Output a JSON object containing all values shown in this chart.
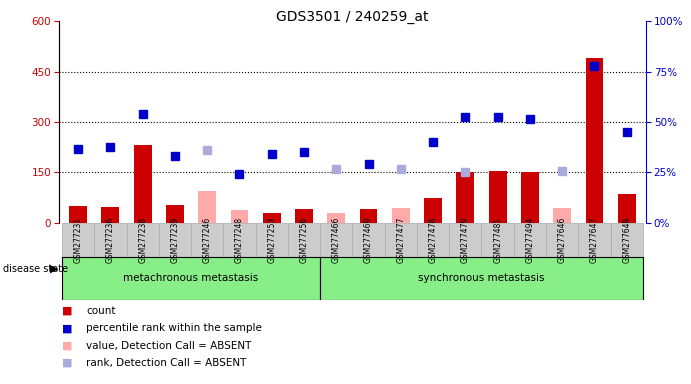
{
  "title": "GDS3501 / 240259_at",
  "samples": [
    "GSM277231",
    "GSM277236",
    "GSM277238",
    "GSM277239",
    "GSM277246",
    "GSM277248",
    "GSM277253",
    "GSM277256",
    "GSM277466",
    "GSM277469",
    "GSM277477",
    "GSM277478",
    "GSM277479",
    "GSM277481",
    "GSM277494",
    "GSM277646",
    "GSM277647",
    "GSM277648"
  ],
  "group1_label": "metachronous metastasis",
  "group2_label": "synchronous metastasis",
  "group1_count": 8,
  "group2_count": 10,
  "bar_values": [
    50,
    48,
    230,
    52,
    null,
    null,
    28,
    42,
    null,
    40,
    null,
    75,
    150,
    155,
    150,
    null,
    490,
    85
  ],
  "bar_absent": [
    null,
    null,
    null,
    null,
    95,
    38,
    null,
    null,
    28,
    null,
    45,
    null,
    null,
    null,
    null,
    45,
    null,
    null
  ],
  "scatter_dark": [
    220,
    225,
    325,
    200,
    null,
    145,
    205,
    210,
    null,
    175,
    null,
    240,
    315,
    315,
    310,
    null,
    465,
    270
  ],
  "scatter_light": [
    null,
    null,
    null,
    null,
    215,
    null,
    null,
    null,
    160,
    null,
    160,
    null,
    150,
    null,
    null,
    155,
    null,
    null
  ],
  "ylim_left": [
    0,
    600
  ],
  "ylim_right": [
    0,
    100
  ],
  "yticks_left": [
    0,
    150,
    300,
    450,
    600
  ],
  "yticks_right": [
    0,
    25,
    50,
    75,
    100
  ],
  "bar_color": "#cc0000",
  "bar_absent_color": "#ffaaaa",
  "scatter_dark_color": "#0000cc",
  "scatter_light_color": "#aaaadd",
  "group_bg_color": "#88ee88",
  "sample_box_color": "#cccccc",
  "plot_bg_color": "#ffffff",
  "grid_color": "#000000",
  "title_color": "#333333",
  "left_axis_color": "#cc0000",
  "right_axis_color": "#0000cc",
  "legend_items": [
    {
      "color": "#cc0000",
      "marker": "s",
      "label": "count"
    },
    {
      "color": "#0000cc",
      "marker": "s",
      "label": "percentile rank within the sample"
    },
    {
      "color": "#ffaaaa",
      "marker": "s",
      "label": "value, Detection Call = ABSENT"
    },
    {
      "color": "#aaaadd",
      "marker": "s",
      "label": "rank, Detection Call = ABSENT"
    }
  ]
}
